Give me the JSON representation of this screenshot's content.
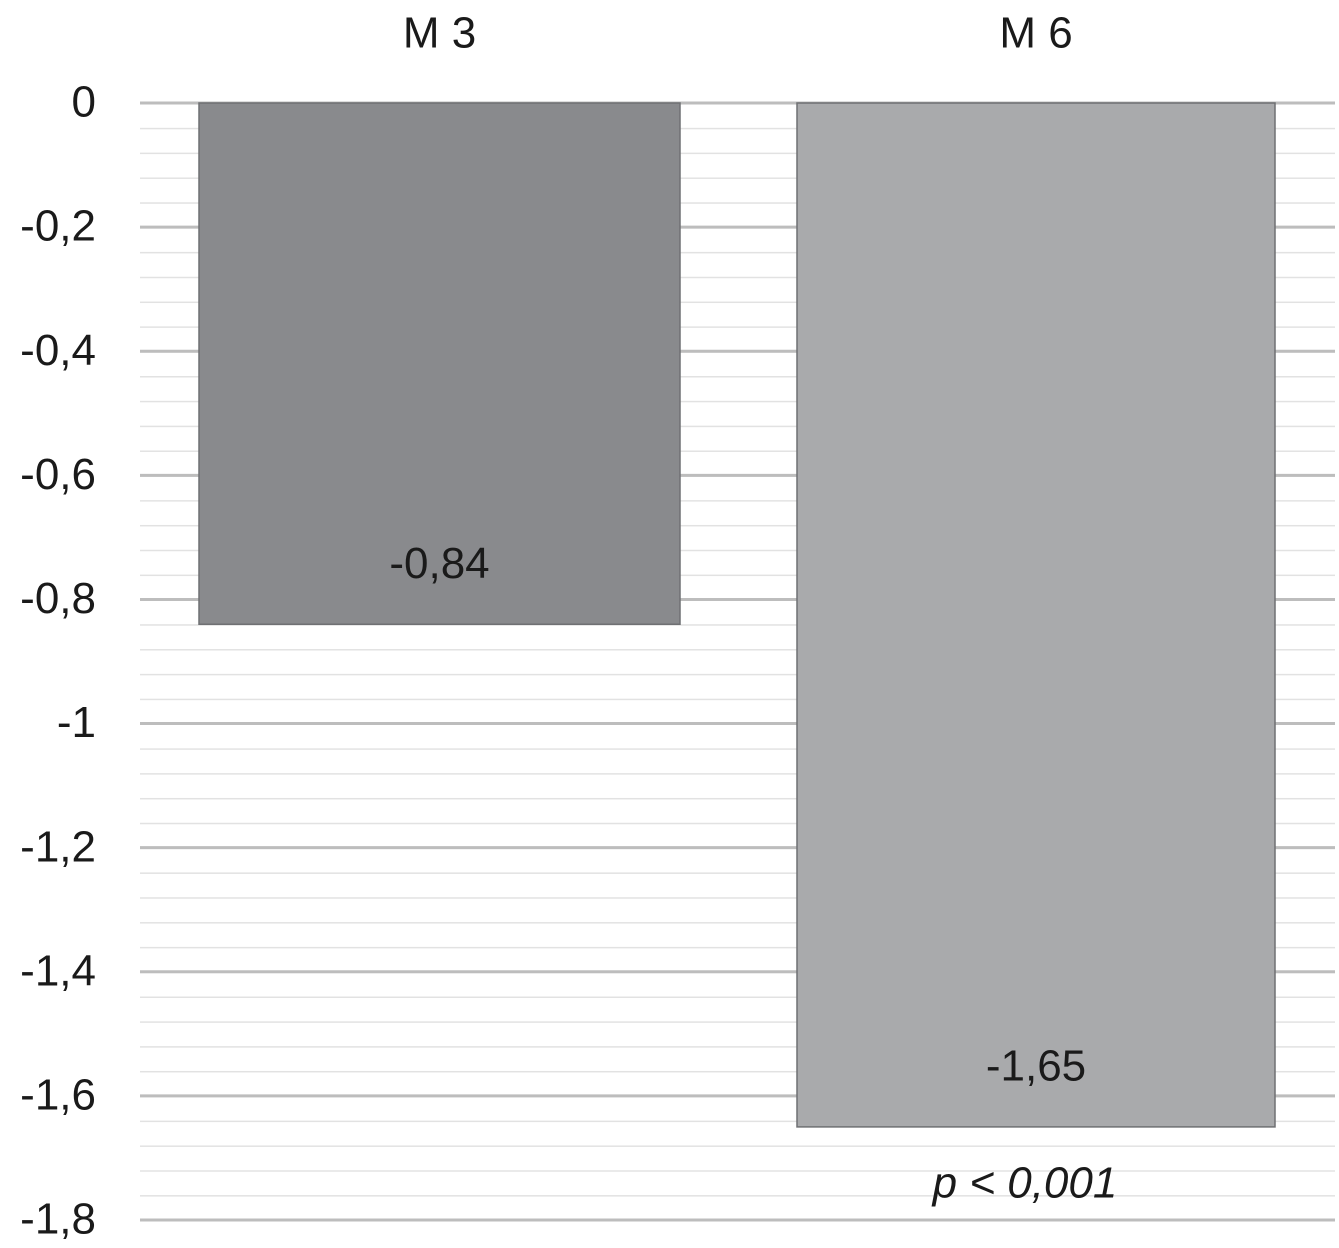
{
  "chart_data": {
    "type": "bar",
    "categories": [
      "M 3",
      "M 6"
    ],
    "values": [
      -0.84,
      -1.65
    ],
    "value_labels": [
      "-0,84",
      "-1,65"
    ],
    "colors": [
      "#898a8d",
      "#a9aaac"
    ],
    "ylim": [
      0,
      -1.8
    ],
    "yticks": [
      0,
      {
        "value": -0.2,
        "label": "-0,2"
      },
      {
        "value": -0.4,
        "label": "-0,4"
      },
      {
        "value": -0.6,
        "label": "-0,6"
      },
      {
        "value": -0.8,
        "label": "-0,8"
      },
      -1,
      {
        "value": -1.2,
        "label": "-1,2"
      },
      {
        "value": -1.4,
        "label": "-1,4"
      },
      {
        "value": -1.6,
        "label": "-1,6"
      },
      {
        "value": -1.8,
        "label": "-1,8"
      }
    ],
    "grid": true,
    "annotation": "p < 0,001"
  }
}
